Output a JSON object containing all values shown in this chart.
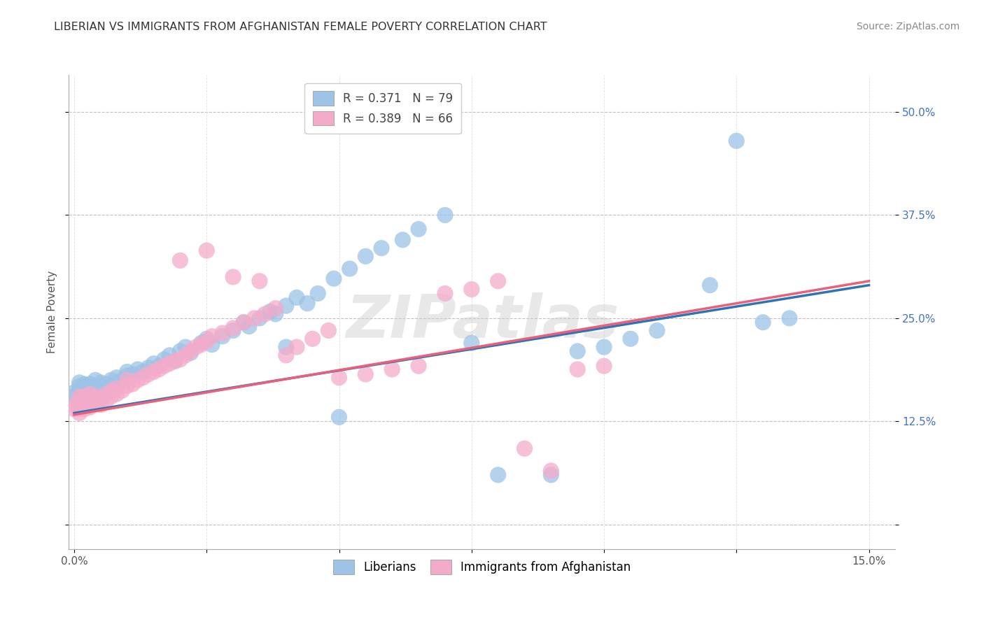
{
  "title": "LIBERIAN VS IMMIGRANTS FROM AFGHANISTAN FEMALE POVERTY CORRELATION CHART",
  "source": "Source: ZipAtlas.com",
  "ylabel": "Female Poverty",
  "xlim": [
    -0.001,
    0.155
  ],
  "ylim": [
    -0.03,
    0.545
  ],
  "xticks": [
    0.0,
    0.025,
    0.05,
    0.075,
    0.1,
    0.125,
    0.15
  ],
  "xticklabels": [
    "0.0%",
    "",
    "",
    "",
    "",
    "",
    "15.0%"
  ],
  "yticks": [
    0.0,
    0.125,
    0.25,
    0.375,
    0.5
  ],
  "yticklabels": [
    "",
    "12.5%",
    "25.0%",
    "37.5%",
    "50.0%"
  ],
  "R1": 0.371,
  "N1": 79,
  "R2": 0.389,
  "N2": 66,
  "color1": "#9DC3E6",
  "color2": "#F4ABCA",
  "line_color1": "#2E74B5",
  "line_color2": "#E8607A",
  "ytick_color": "#4472C4",
  "legend_label1": "Liberians",
  "legend_label2": "Immigrants from Afghanistan",
  "trend1_x0": 0.0,
  "trend1_y0": 0.135,
  "trend1_x1": 0.15,
  "trend1_y1": 0.29,
  "trend2_x0": 0.0,
  "trend2_y0": 0.133,
  "trend2_x1": 0.15,
  "trend2_y1": 0.295,
  "scatter1_x": [
    0.0,
    0.0,
    0.001,
    0.001,
    0.001,
    0.001,
    0.001,
    0.001,
    0.002,
    0.002,
    0.002,
    0.002,
    0.002,
    0.003,
    0.003,
    0.003,
    0.003,
    0.004,
    0.004,
    0.004,
    0.004,
    0.005,
    0.005,
    0.005,
    0.006,
    0.006,
    0.007,
    0.007,
    0.008,
    0.008,
    0.009,
    0.01,
    0.01,
    0.011,
    0.012,
    0.013,
    0.014,
    0.015,
    0.016,
    0.017,
    0.018,
    0.019,
    0.02,
    0.021,
    0.022,
    0.024,
    0.025,
    0.026,
    0.028,
    0.03,
    0.032,
    0.033,
    0.035,
    0.037,
    0.038,
    0.04,
    0.042,
    0.044,
    0.046,
    0.049,
    0.052,
    0.055,
    0.058,
    0.062,
    0.065,
    0.07,
    0.075,
    0.08,
    0.09,
    0.095,
    0.1,
    0.105,
    0.11,
    0.12,
    0.125,
    0.13,
    0.135,
    0.04,
    0.05
  ],
  "scatter1_y": [
    0.155,
    0.16,
    0.145,
    0.148,
    0.155,
    0.162,
    0.168,
    0.172,
    0.15,
    0.155,
    0.16,
    0.165,
    0.17,
    0.148,
    0.155,
    0.162,
    0.17,
    0.155,
    0.162,
    0.168,
    0.175,
    0.16,
    0.165,
    0.172,
    0.165,
    0.17,
    0.168,
    0.175,
    0.17,
    0.178,
    0.175,
    0.18,
    0.185,
    0.182,
    0.188,
    0.185,
    0.19,
    0.195,
    0.192,
    0.2,
    0.205,
    0.198,
    0.21,
    0.215,
    0.208,
    0.22,
    0.225,
    0.218,
    0.228,
    0.235,
    0.245,
    0.24,
    0.25,
    0.258,
    0.255,
    0.265,
    0.275,
    0.268,
    0.28,
    0.298,
    0.31,
    0.325,
    0.335,
    0.345,
    0.358,
    0.375,
    0.22,
    0.06,
    0.06,
    0.21,
    0.215,
    0.225,
    0.235,
    0.29,
    0.465,
    0.245,
    0.25,
    0.215,
    0.13
  ],
  "scatter2_x": [
    0.0,
    0.0,
    0.001,
    0.001,
    0.001,
    0.001,
    0.002,
    0.002,
    0.002,
    0.003,
    0.003,
    0.003,
    0.004,
    0.004,
    0.005,
    0.005,
    0.006,
    0.006,
    0.007,
    0.007,
    0.008,
    0.008,
    0.009,
    0.01,
    0.01,
    0.011,
    0.012,
    0.013,
    0.014,
    0.015,
    0.016,
    0.017,
    0.018,
    0.019,
    0.02,
    0.021,
    0.022,
    0.023,
    0.024,
    0.025,
    0.026,
    0.028,
    0.03,
    0.032,
    0.034,
    0.036,
    0.038,
    0.04,
    0.042,
    0.045,
    0.048,
    0.05,
    0.055,
    0.06,
    0.065,
    0.07,
    0.075,
    0.08,
    0.085,
    0.09,
    0.095,
    0.1,
    0.035,
    0.03,
    0.025,
    0.02
  ],
  "scatter2_y": [
    0.14,
    0.145,
    0.135,
    0.14,
    0.148,
    0.155,
    0.14,
    0.148,
    0.155,
    0.142,
    0.15,
    0.158,
    0.148,
    0.155,
    0.145,
    0.152,
    0.15,
    0.158,
    0.155,
    0.162,
    0.158,
    0.165,
    0.162,
    0.168,
    0.175,
    0.17,
    0.175,
    0.178,
    0.182,
    0.185,
    0.188,
    0.192,
    0.195,
    0.198,
    0.2,
    0.205,
    0.21,
    0.215,
    0.218,
    0.222,
    0.228,
    0.232,
    0.238,
    0.245,
    0.25,
    0.255,
    0.262,
    0.205,
    0.215,
    0.225,
    0.235,
    0.178,
    0.182,
    0.188,
    0.192,
    0.28,
    0.285,
    0.295,
    0.092,
    0.065,
    0.188,
    0.192,
    0.295,
    0.3,
    0.332,
    0.32
  ]
}
